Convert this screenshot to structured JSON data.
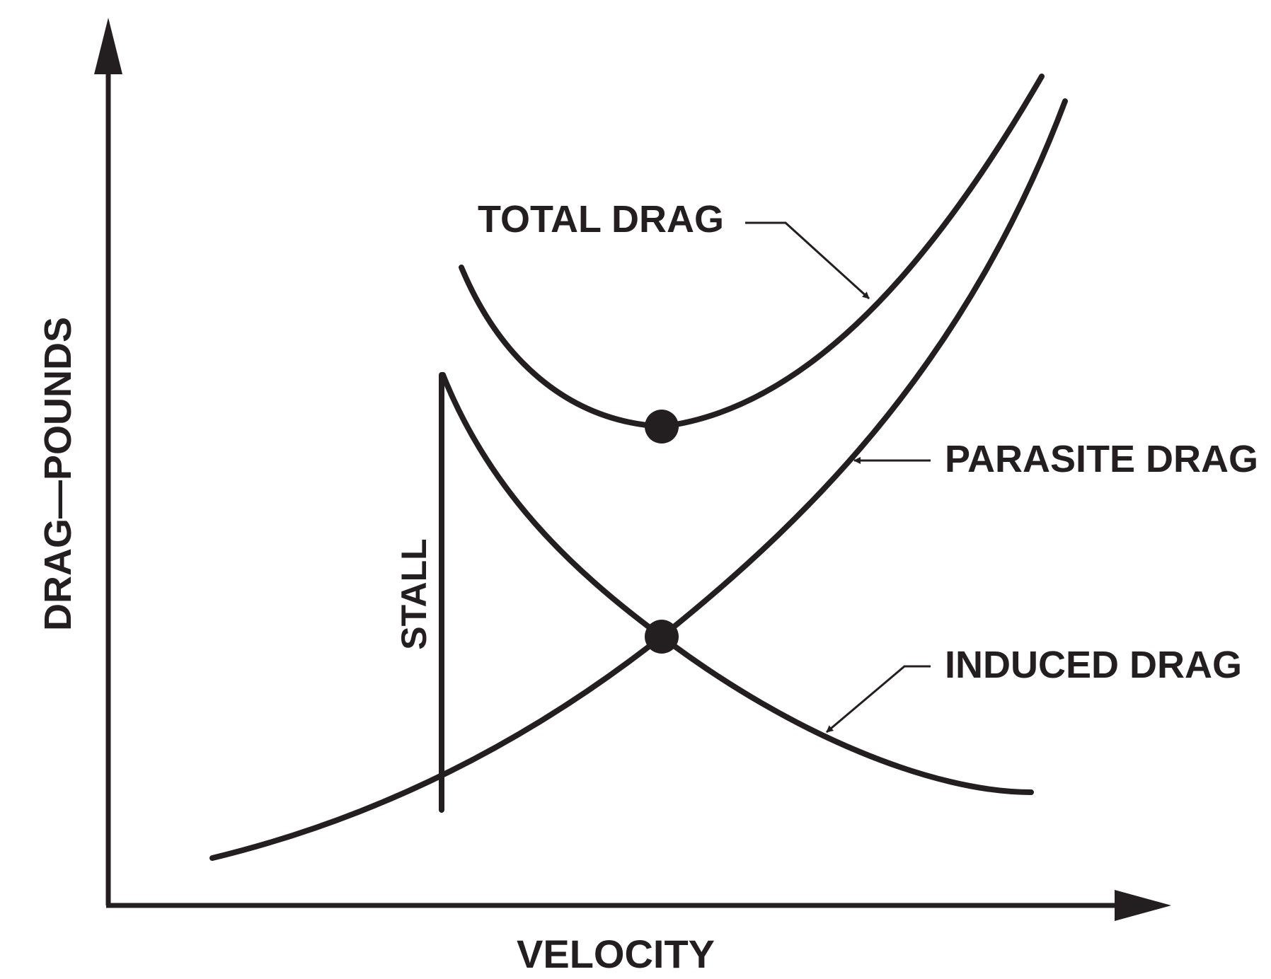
{
  "chart_data": {
    "type": "line",
    "title": "",
    "xlabel": "VELOCITY",
    "ylabel": "DRAG—POUNDS",
    "ticks": "none",
    "grid": false,
    "legend": "none (curves labeled directly with arrows)",
    "series": [
      {
        "name": "TOTAL DRAG",
        "shape": "U-shaped curve (sum of parasite and induced drag)",
        "marker": "minimum point (dot)"
      },
      {
        "name": "PARASITE DRAG",
        "shape": "increases with velocity"
      },
      {
        "name": "INDUCED DRAG",
        "shape": "decreases with velocity",
        "marker": "intersection with parasite drag (dot)"
      }
    ],
    "annotations": [
      {
        "text": "STALL",
        "kind": "vertical line marking stall speed"
      }
    ]
  }
}
